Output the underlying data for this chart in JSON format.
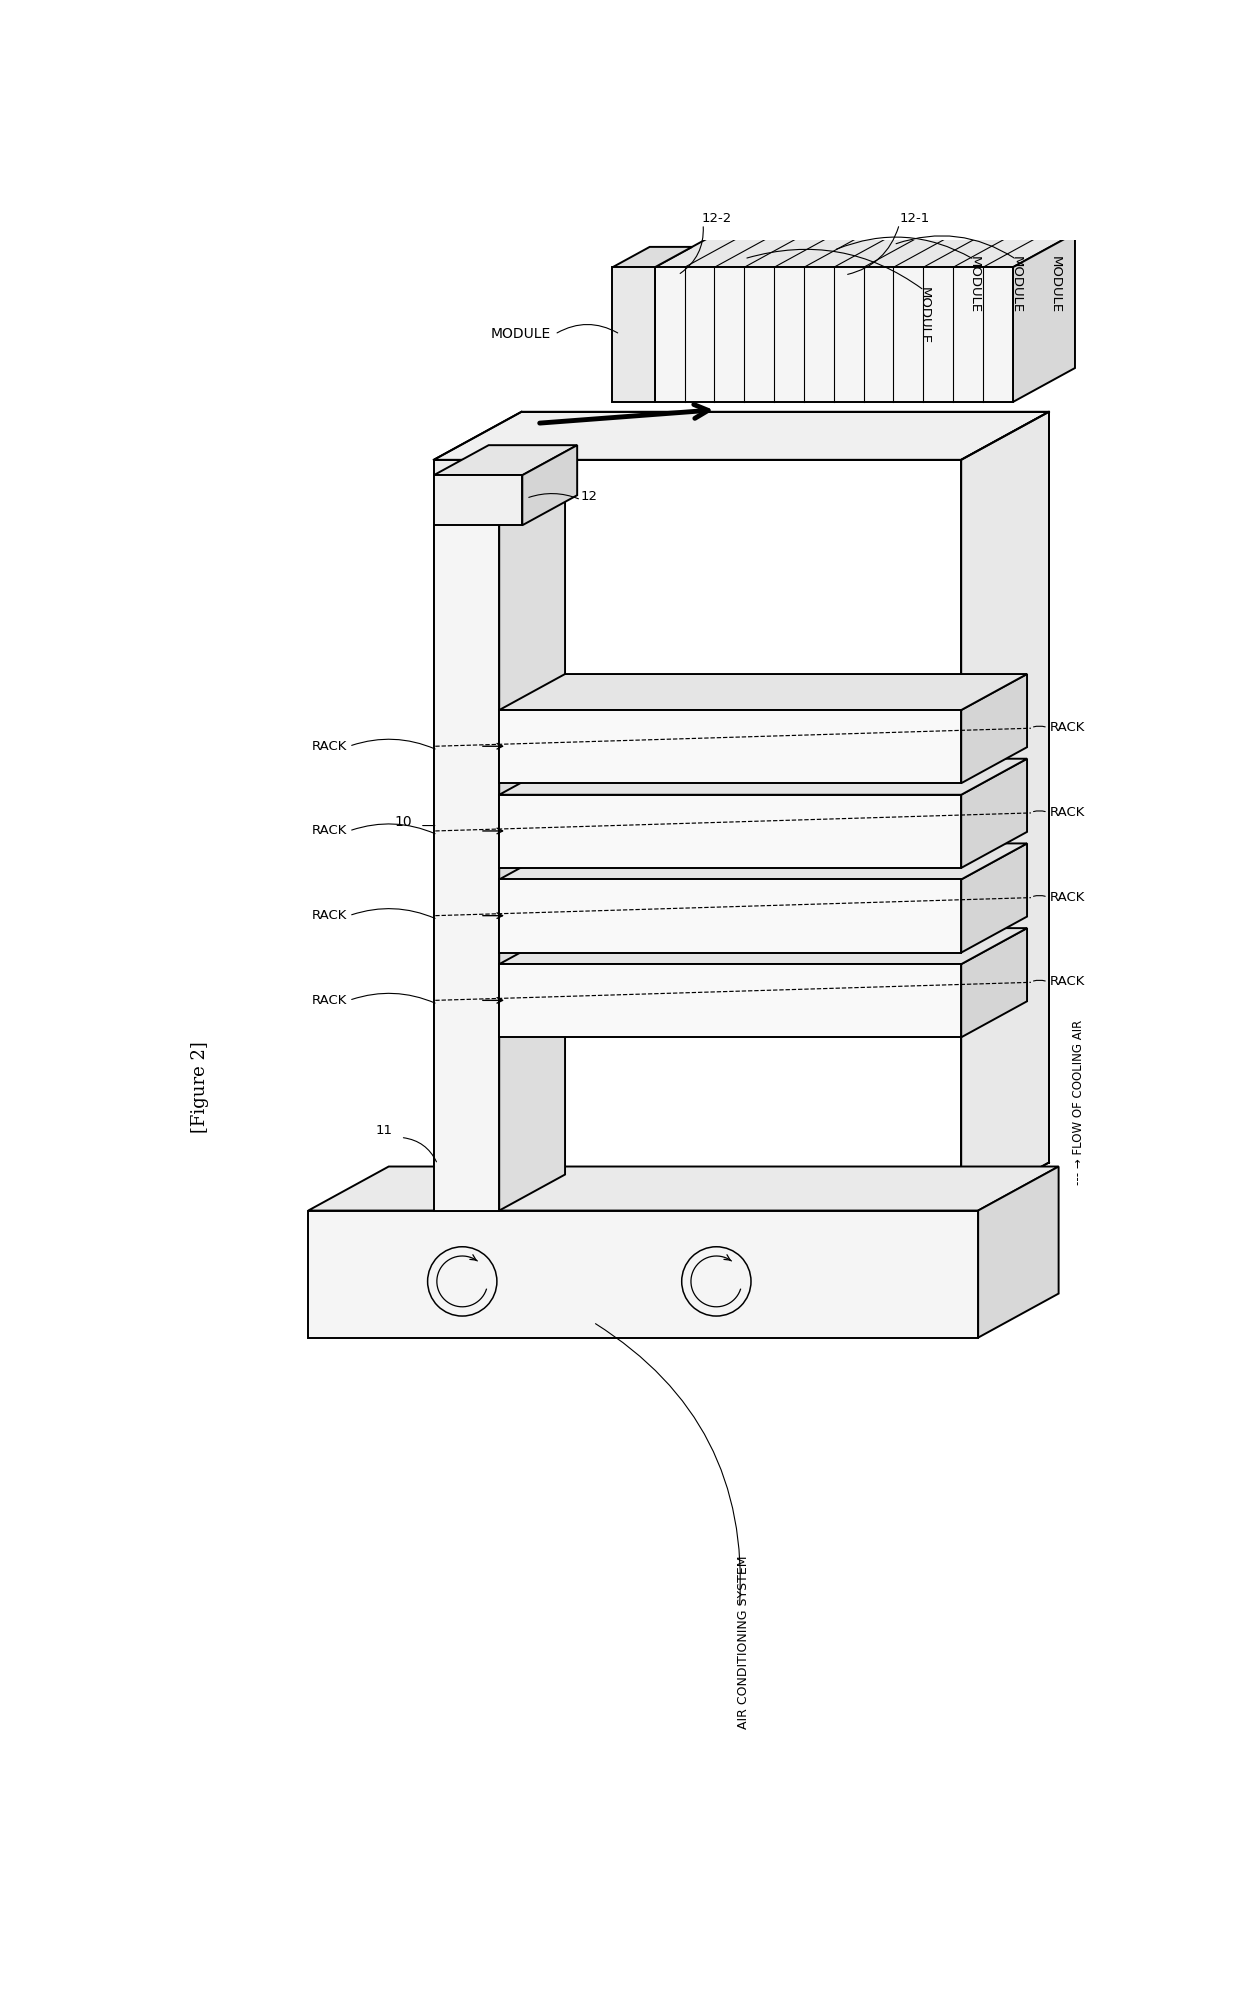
{
  "bg_color": "#ffffff",
  "fig_width": 12.4,
  "fig_height": 20.03,
  "label_figure": "[Figure 2]",
  "label_air_conditioning": "AIR CONDITIONING SYSTEM",
  "label_flow_dashes": "- - -",
  "label_flow_arrow": "→ FLOW OF COOLING AIR",
  "label_10": "10",
  "label_11": "11",
  "label_12": "12",
  "label_12_1": "12-1",
  "label_12_2": "12-2",
  "ec": "black",
  "face_white": "#ffffff",
  "face_light": "#f0f0f0",
  "face_mid": "#d8d8d8",
  "face_dark": "#c0c0c0"
}
